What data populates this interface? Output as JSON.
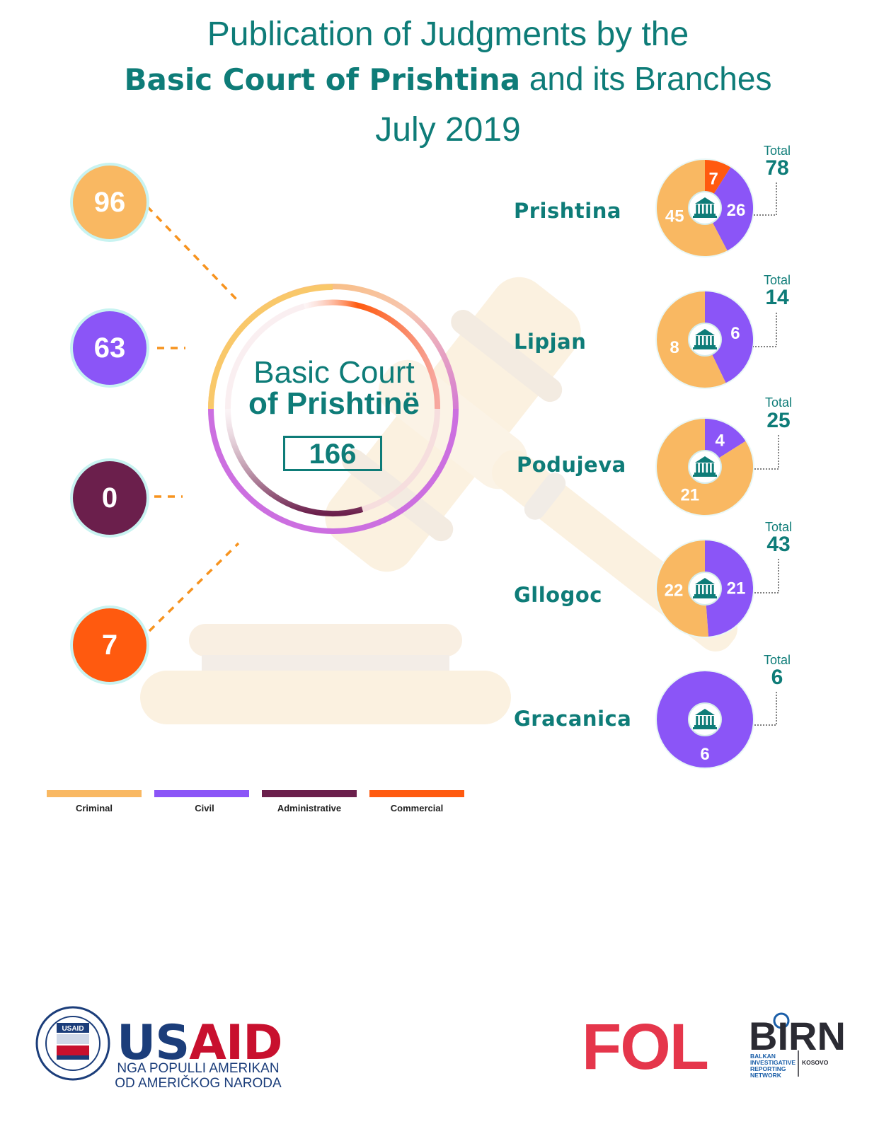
{
  "title": {
    "line1": "Publication of Judgments by the",
    "line2_bold": "Basic Court of Prishtina",
    "line2_rest": "and its Branches",
    "line3": "July 2019"
  },
  "center": {
    "line1": "Basic Court",
    "line2": "of Prishtinë",
    "total": "166"
  },
  "chart_data": [
    {
      "type": "pie",
      "name": "Basic Court of Prishtinë totals by case type",
      "categories": [
        "Criminal",
        "Civil",
        "Administrative",
        "Commercial"
      ],
      "values": [
        96,
        63,
        0,
        7
      ],
      "labels": [
        "96",
        "63",
        "0",
        "7"
      ],
      "total": 166
    },
    {
      "type": "pie",
      "branch": "Prishtina",
      "total_label": "Total",
      "total": "78",
      "values": {
        "Criminal": 45,
        "Civil": 26,
        "Administrative": 0,
        "Commercial": 7
      },
      "labels": {
        "Criminal": "45",
        "Civil": "26",
        "Commercial": "7"
      }
    },
    {
      "type": "pie",
      "branch": "Lipjan",
      "total_label": "Total",
      "total": "14",
      "values": {
        "Criminal": 8,
        "Civil": 6,
        "Administrative": 0,
        "Commercial": 0
      },
      "labels": {
        "Criminal": "8",
        "Civil": "6"
      }
    },
    {
      "type": "pie",
      "branch": "Podujeva",
      "total_label": "Total",
      "total": "25",
      "values": {
        "Criminal": 21,
        "Civil": 4,
        "Administrative": 0,
        "Commercial": 0
      },
      "labels": {
        "Criminal": "21",
        "Civil": "4"
      }
    },
    {
      "type": "pie",
      "branch": "Gllogoc",
      "total_label": "Total",
      "total": "43",
      "values": {
        "Criminal": 22,
        "Civil": 21,
        "Administrative": 0,
        "Commercial": 0
      },
      "labels": {
        "Criminal": "22",
        "Civil": "21"
      }
    },
    {
      "type": "pie",
      "branch": "Gracanica",
      "total_label": "Total",
      "total": "6",
      "values": {
        "Criminal": 0,
        "Civil": 6,
        "Administrative": 0,
        "Commercial": 0
      },
      "labels": {
        "Civil": "6"
      }
    }
  ],
  "colors": {
    "Criminal": "#f9b862",
    "Civil": "#8b55f7",
    "Administrative": "#6b1f4c",
    "Commercial": "#ff5a0f",
    "accent": "#0e7c78"
  },
  "legend": [
    {
      "label": "Criminal",
      "color": "#f9b862"
    },
    {
      "label": "Civil",
      "color": "#8b55f7"
    },
    {
      "label": "Administrative",
      "color": "#6b1f4c"
    },
    {
      "label": "Commercial",
      "color": "#ff5a0f"
    }
  ],
  "icons": {
    "gavel": "gavel-icon",
    "courthouse": "courthouse-icon"
  },
  "footer": {
    "usaid_brand_blue": "US",
    "usaid_brand_red": "AID",
    "usaid_sub1": "NGA POPULLI AMERIKAN",
    "usaid_sub2": "OD AMERIČKOG NARODA",
    "usaid_seal_text": "USAID",
    "fol": "FOL",
    "birn": "BIRN",
    "birn_sub1": "BALKAN",
    "birn_sub2": "INVESTIGATIVE",
    "birn_sub3": "REPORTING",
    "birn_sub4": "NETWORK",
    "birn_region": "KOSOVO"
  }
}
